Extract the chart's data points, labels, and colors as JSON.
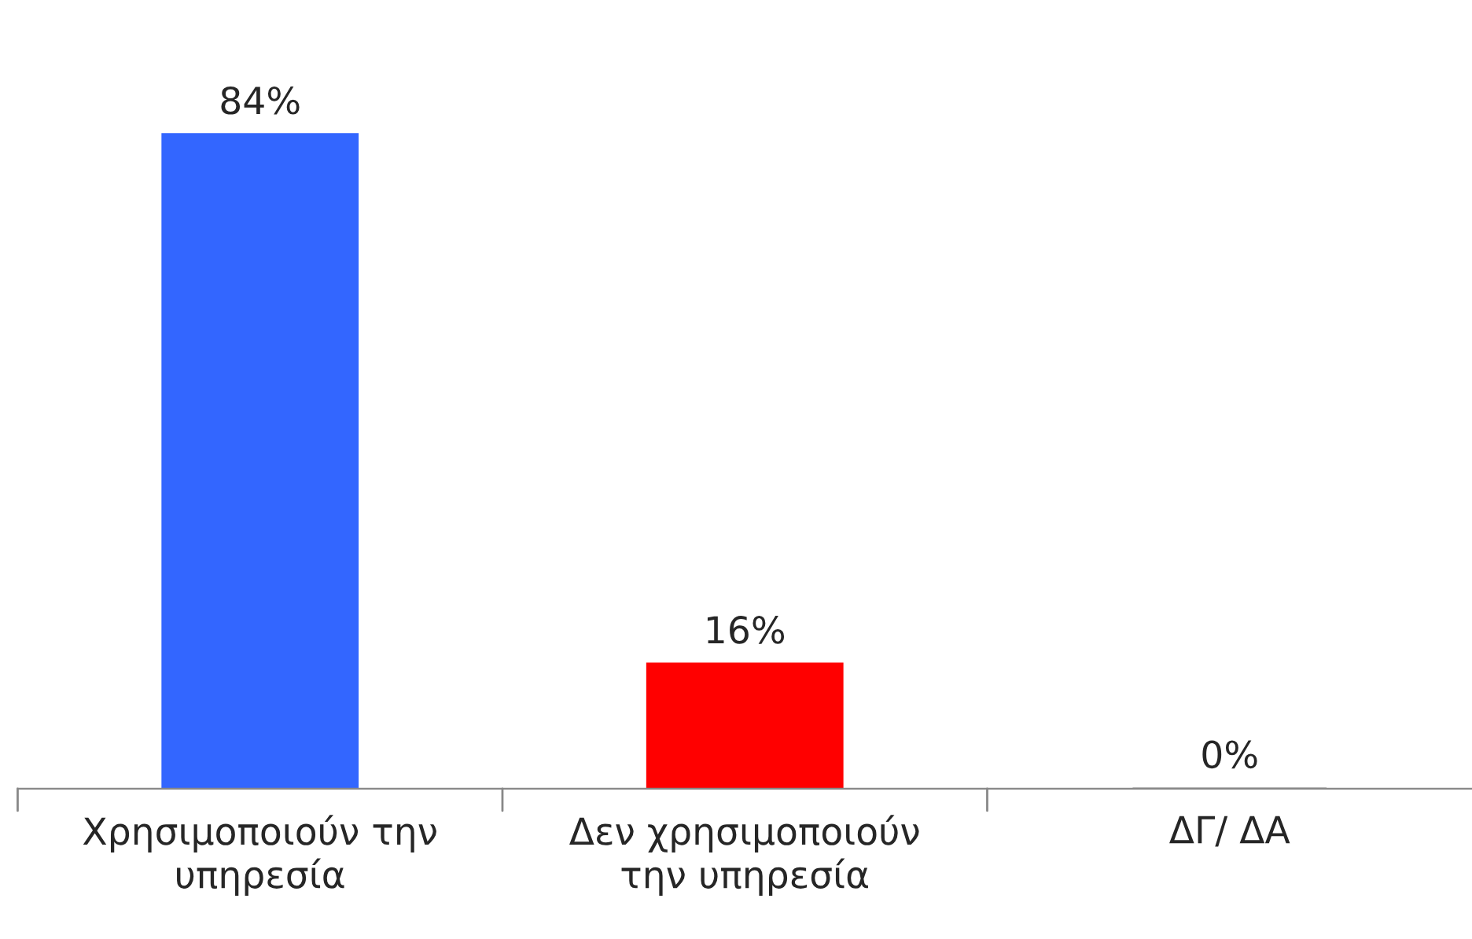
{
  "chart_data": {
    "type": "bar",
    "categories": [
      "Χρησιμοποιούν την\nυπηρεσία",
      "Δεν χρησιμοποιούν\nτην υπηρεσία",
      "ΔΓ/ ΔΑ"
    ],
    "values": [
      84,
      16,
      0
    ],
    "colors": [
      "#3366ff",
      "#ff0000",
      "#c0c0c0"
    ],
    "value_labels": [
      "84%",
      "16%",
      "0%"
    ],
    "grid": false,
    "legend": false
  }
}
